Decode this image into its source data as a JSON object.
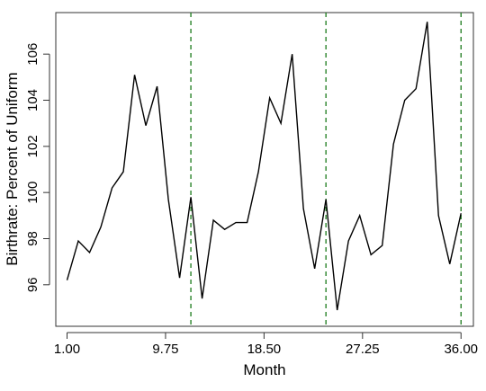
{
  "chart_data": {
    "type": "line",
    "title": "",
    "xlabel": "Month",
    "ylabel": "Birthrate: Percent of Uniform",
    "xlim": [
      0,
      37.1
    ],
    "ylim": [
      94.2,
      107.8
    ],
    "x_ticks": [
      1.0,
      9.75,
      18.5,
      27.25,
      36.0
    ],
    "x_tick_labels": [
      "1.00",
      "9.75",
      "18.50",
      "27.25",
      "36.00"
    ],
    "y_ticks": [
      96,
      98,
      100,
      102,
      104,
      106
    ],
    "y_tick_labels": [
      "96",
      "98",
      "100",
      "102",
      "104",
      "106"
    ],
    "grid": false,
    "legend": null,
    "reference_lines": {
      "orientation": "vertical",
      "style": "dashed",
      "color": "#1a7a1a",
      "x": [
        12,
        24,
        36
      ]
    },
    "series": [
      {
        "color": "#000000",
        "x": [
          1,
          2,
          3,
          4,
          5,
          6,
          7,
          8,
          9,
          10,
          11,
          12,
          13,
          14,
          15,
          16,
          17,
          18,
          19,
          20,
          21,
          22,
          23,
          24,
          25,
          26,
          27,
          28,
          29,
          30,
          31,
          32,
          33,
          34,
          35,
          36
        ],
        "values": [
          96.2,
          97.9,
          97.4,
          98.5,
          100.2,
          100.9,
          105.1,
          102.9,
          104.6,
          99.7,
          96.3,
          99.8,
          95.4,
          98.8,
          98.4,
          98.7,
          98.7,
          100.9,
          104.1,
          103.0,
          106.0,
          99.3,
          96.7,
          99.7,
          94.9,
          97.9,
          99.0,
          97.3,
          97.7,
          102.1,
          104.0,
          104.5,
          107.4,
          99.0,
          96.9,
          99.1
        ]
      }
    ]
  }
}
